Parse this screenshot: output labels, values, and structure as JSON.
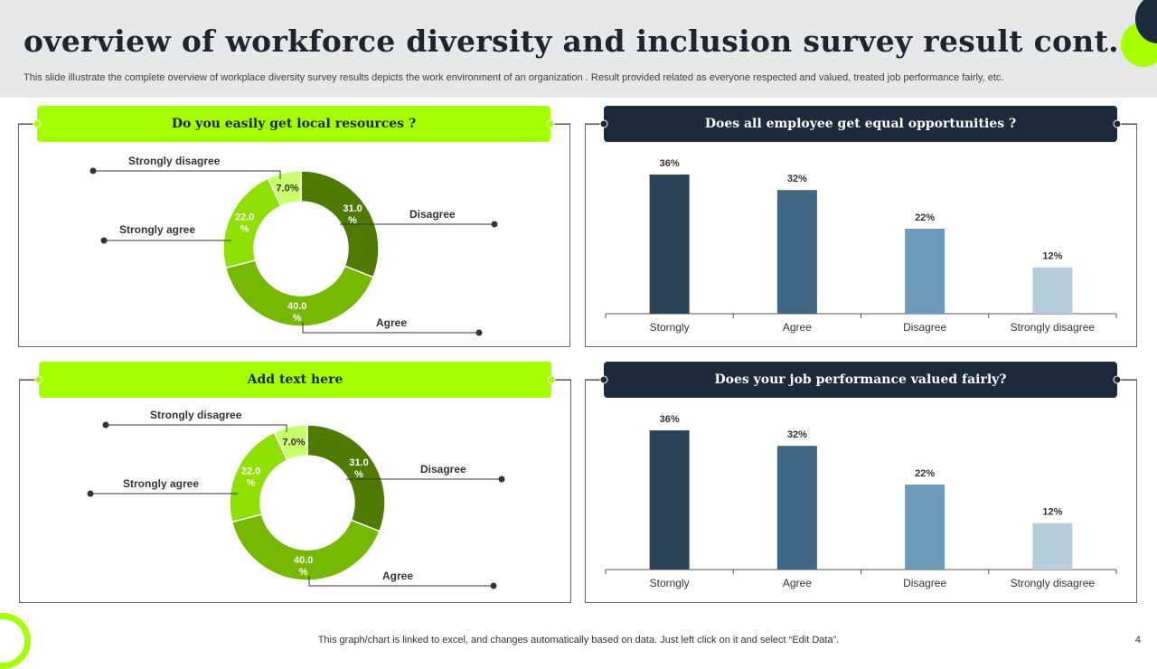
{
  "header": {
    "title": "overview of workforce diversity and inclusion survey result cont..",
    "subtitle": "This slide illustrate  the complete overview of workplace diversity survey results depicts the work environment of an organization . Result provided related as everyone respected and valued, treated job performance fairly, etc."
  },
  "footer": {
    "note": "This graph/chart is linked to excel,  and changes automatically based on data. Just left click on it and select “Edit Data”.",
    "page": "4"
  },
  "colors": {
    "accent_green": "#a6ff00",
    "dark_navy": "#1b2b3b",
    "donut": [
      "#4f7a00",
      "#74b800",
      "#8ee000",
      "#c9ff6a"
    ],
    "bars": [
      "#2a4356",
      "#3f6682",
      "#6c9ab8",
      "#b6cedc"
    ]
  },
  "chart_data": [
    {
      "type": "pie",
      "title": "Do you easily get local resources ?",
      "categories": [
        "Disagree",
        "Agree",
        "Strongly agree",
        "Strongly disagree"
      ],
      "values": [
        31.0,
        40.0,
        22.0,
        7.0
      ],
      "data_labels": [
        "31.0 %",
        "40.0 %",
        "22.0 %",
        "7.0%"
      ],
      "hole": "donut"
    },
    {
      "type": "bar",
      "title": "Does all employee get equal opportunities  ?",
      "categories": [
        "Storngly",
        "Agree",
        "Disagree",
        "Strongly disagree"
      ],
      "values": [
        36,
        32,
        22,
        12
      ],
      "data_labels": [
        "36%",
        "32%",
        "22%",
        "12%"
      ],
      "ylim": [
        0,
        40
      ]
    },
    {
      "type": "pie",
      "title": "Add text here",
      "categories": [
        "Disagree",
        "Agree",
        "Strongly agree",
        "Strongly disagree"
      ],
      "values": [
        31.0,
        40.0,
        22.0,
        7.0
      ],
      "data_labels": [
        "31.0 %",
        "40.0 %",
        "22.0 %",
        "7.0%"
      ],
      "hole": "donut"
    },
    {
      "type": "bar",
      "title": "Does your job performance  valued fairly?",
      "categories": [
        "Storngly",
        "Agree",
        "Disagree",
        "Strongly disagree"
      ],
      "values": [
        36,
        32,
        22,
        12
      ],
      "data_labels": [
        "36%",
        "32%",
        "22%",
        "12%"
      ],
      "ylim": [
        0,
        40
      ]
    }
  ]
}
